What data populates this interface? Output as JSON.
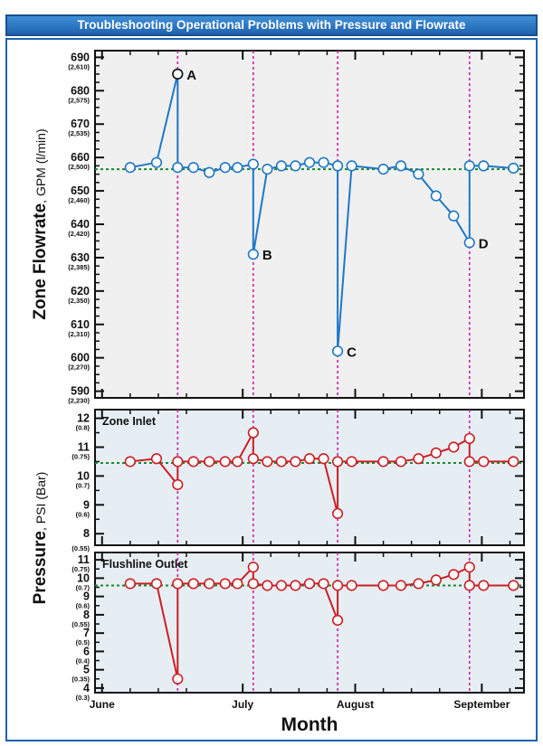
{
  "title": "Troubleshooting Operational Problems with Pressure and Flowrate",
  "chart_data": [
    {
      "id": "flowrate",
      "type": "line",
      "ylabel_main": "Zone Flowrate",
      "ylabel_unit": ", GPM (l/min)",
      "ylim": [
        588,
        692
      ],
      "yticks": [
        {
          "v": 690,
          "label": "690",
          "sub": "(2,610)"
        },
        {
          "v": 680,
          "label": "680",
          "sub": "(2,575)"
        },
        {
          "v": 670,
          "label": "670",
          "sub": "(2,535)"
        },
        {
          "v": 660,
          "label": "660",
          "sub": "(2,500)"
        },
        {
          "v": 650,
          "label": "650",
          "sub": "(2,460)"
        },
        {
          "v": 640,
          "label": "640",
          "sub": "(2,420)"
        },
        {
          "v": 630,
          "label": "630",
          "sub": "(2,385)"
        },
        {
          "v": 620,
          "label": "620",
          "sub": "(2,350)"
        },
        {
          "v": 610,
          "label": "610",
          "sub": "(2,310)"
        },
        {
          "v": 600,
          "label": "600",
          "sub": "(2,270)"
        },
        {
          "v": 590,
          "label": "590",
          "sub": "(2,230)"
        }
      ],
      "baseline": 656.5,
      "x": [
        8,
        15.5,
        21.5,
        21.5,
        26,
        30.5,
        35,
        38.5,
        43,
        43,
        47,
        51,
        55,
        59,
        63,
        67,
        67,
        71,
        80,
        85,
        90,
        95,
        100,
        104.5,
        104.5,
        108.5,
        117
      ],
      "values": [
        657,
        658.5,
        685,
        657,
        657,
        655.5,
        657,
        657,
        658,
        631,
        656.5,
        657.5,
        657.5,
        658.5,
        658.5,
        657.5,
        602,
        657.5,
        656.5,
        657.5,
        655,
        648.5,
        642.5,
        634.5,
        657.5,
        657.5,
        656.8
      ],
      "annotations": [
        {
          "label": "A",
          "x": 21.5,
          "y": 685
        },
        {
          "label": "B",
          "x": 43,
          "y": 631
        },
        {
          "label": "C",
          "x": 67,
          "y": 602
        },
        {
          "label": "D",
          "x": 104.5,
          "y": 634.5
        }
      ]
    },
    {
      "id": "zone-inlet",
      "type": "line",
      "title": "Zone Inlet",
      "ylim": [
        7.6,
        12.3
      ],
      "yticks": [
        {
          "v": 12,
          "label": "12",
          "sub": "(0.8)"
        },
        {
          "v": 11,
          "label": "11",
          "sub": "(0.75)"
        },
        {
          "v": 10,
          "label": "10",
          "sub": "(0.7)"
        },
        {
          "v": 9,
          "label": "9",
          "sub": "(0.6)"
        },
        {
          "v": 8,
          "label": "8",
          "sub": ""
        }
      ],
      "baseline": 10.45,
      "x": [
        8,
        15.5,
        21.5,
        21.5,
        26,
        30.5,
        35,
        38.5,
        43,
        43,
        47,
        51,
        55,
        59,
        63,
        67,
        67,
        71,
        80,
        85,
        90,
        95,
        100,
        104.5,
        104.5,
        108.5,
        117
      ],
      "values": [
        10.5,
        10.6,
        9.7,
        10.5,
        10.5,
        10.5,
        10.5,
        10.5,
        11.5,
        10.6,
        10.5,
        10.5,
        10.5,
        10.6,
        10.6,
        8.7,
        10.5,
        10.5,
        10.5,
        10.5,
        10.6,
        10.8,
        11.0,
        11.3,
        10.5,
        10.5,
        10.5
      ]
    },
    {
      "id": "flushline-outlet",
      "type": "line",
      "title": "Flushline Outlet",
      "ylim": [
        3.75,
        11.4
      ],
      "yticks": [
        {
          "v": 11,
          "label": "11",
          "sub": "(0.75)"
        },
        {
          "v": 10,
          "label": "10",
          "sub": "(0.7)"
        },
        {
          "v": 9,
          "label": "9",
          "sub": "(0.6)"
        },
        {
          "v": 8,
          "label": "8",
          "sub": "(0.55)"
        },
        {
          "v": 7,
          "label": "7",
          "sub": "(0.5)"
        },
        {
          "v": 6,
          "label": "6",
          "sub": "(0.4)"
        },
        {
          "v": 5,
          "label": "5",
          "sub": "(0.35)"
        },
        {
          "v": 4,
          "label": "4",
          "sub": "(0.3)"
        }
      ],
      "extra_sub": {
        "v": 8.0,
        "sub": "(0.55)",
        "panel": "zone-inlet"
      },
      "baseline": 9.6,
      "x": [
        8,
        15.5,
        21.5,
        21.5,
        26,
        30.5,
        35,
        38.5,
        43,
        43,
        47,
        51,
        55,
        59,
        63,
        67,
        67,
        71,
        80,
        85,
        90,
        95,
        100,
        104.5,
        104.5,
        108.5,
        117
      ],
      "values": [
        9.7,
        9.7,
        4.5,
        9.7,
        9.7,
        9.7,
        9.7,
        9.7,
        10.6,
        9.7,
        9.6,
        9.6,
        9.6,
        9.7,
        9.7,
        7.7,
        9.6,
        9.6,
        9.6,
        9.6,
        9.7,
        9.9,
        10.2,
        10.6,
        9.6,
        9.6,
        9.6
      ]
    }
  ],
  "months": [
    {
      "label": "June",
      "x": 0
    },
    {
      "label": "July",
      "x": 40
    },
    {
      "label": "August",
      "x": 72
    },
    {
      "label": "September",
      "x": 108
    }
  ],
  "xlim": [
    -2,
    120
  ],
  "event_lines_x": [
    21.5,
    43,
    67,
    104.5
  ],
  "pressure_ylabel_main": "Pressure",
  "pressure_ylabel_unit": ", PSI (Bar)",
  "xlabel": "Month",
  "colors": {
    "flow_line": "#1f78c8",
    "pressure_line": "#cc1f26",
    "baseline": "#1a8a2e",
    "event_line": "#cc22aa",
    "flow_bg": "#f0f0f0",
    "pressure_bg": "#e6eef3"
  }
}
